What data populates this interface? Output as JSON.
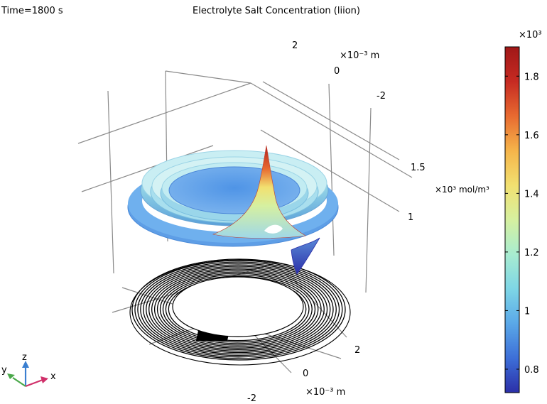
{
  "chart_data": {
    "type": "surface-3d",
    "time_label": "Time=1800 s",
    "title": "Electrolyte Salt Concentration (liion)",
    "axes": {
      "y_unit": "×10⁻³ m",
      "y_ticks": [
        "2",
        "0",
        "-2"
      ],
      "z_ticks": [
        "1.5",
        "1"
      ],
      "x_unit": "×10⁻³ m",
      "x_ticks": [
        "2",
        "0",
        "-2"
      ]
    },
    "surface_unit": "×10³ mol/m³",
    "colorbar": {
      "exponent_label": "×10³",
      "min": 0.72,
      "max": 1.9,
      "ticks": [
        {
          "value": 0.8,
          "label": "0.8"
        },
        {
          "value": 1.0,
          "label": "1"
        },
        {
          "value": 1.2,
          "label": "1.2"
        },
        {
          "value": 1.4,
          "label": "1.4"
        },
        {
          "value": 1.6,
          "label": "1.6"
        },
        {
          "value": 1.8,
          "label": "1.8"
        }
      ],
      "colormap": [
        "#2b2fa8",
        "#3d6fd8",
        "#5aa8e8",
        "#7ed6e6",
        "#a8ecd0",
        "#d6f0a0",
        "#f2e070",
        "#f5b44a",
        "#e86a30",
        "#c62a22",
        "#a01818"
      ]
    },
    "triad": {
      "z": "z",
      "x": "x",
      "y": "y"
    },
    "colors": {
      "axis_z": "#3a7fd0",
      "axis_x": "#d0306a",
      "axis_y": "#4aa84a",
      "grid": "#8a8a8a"
    }
  }
}
